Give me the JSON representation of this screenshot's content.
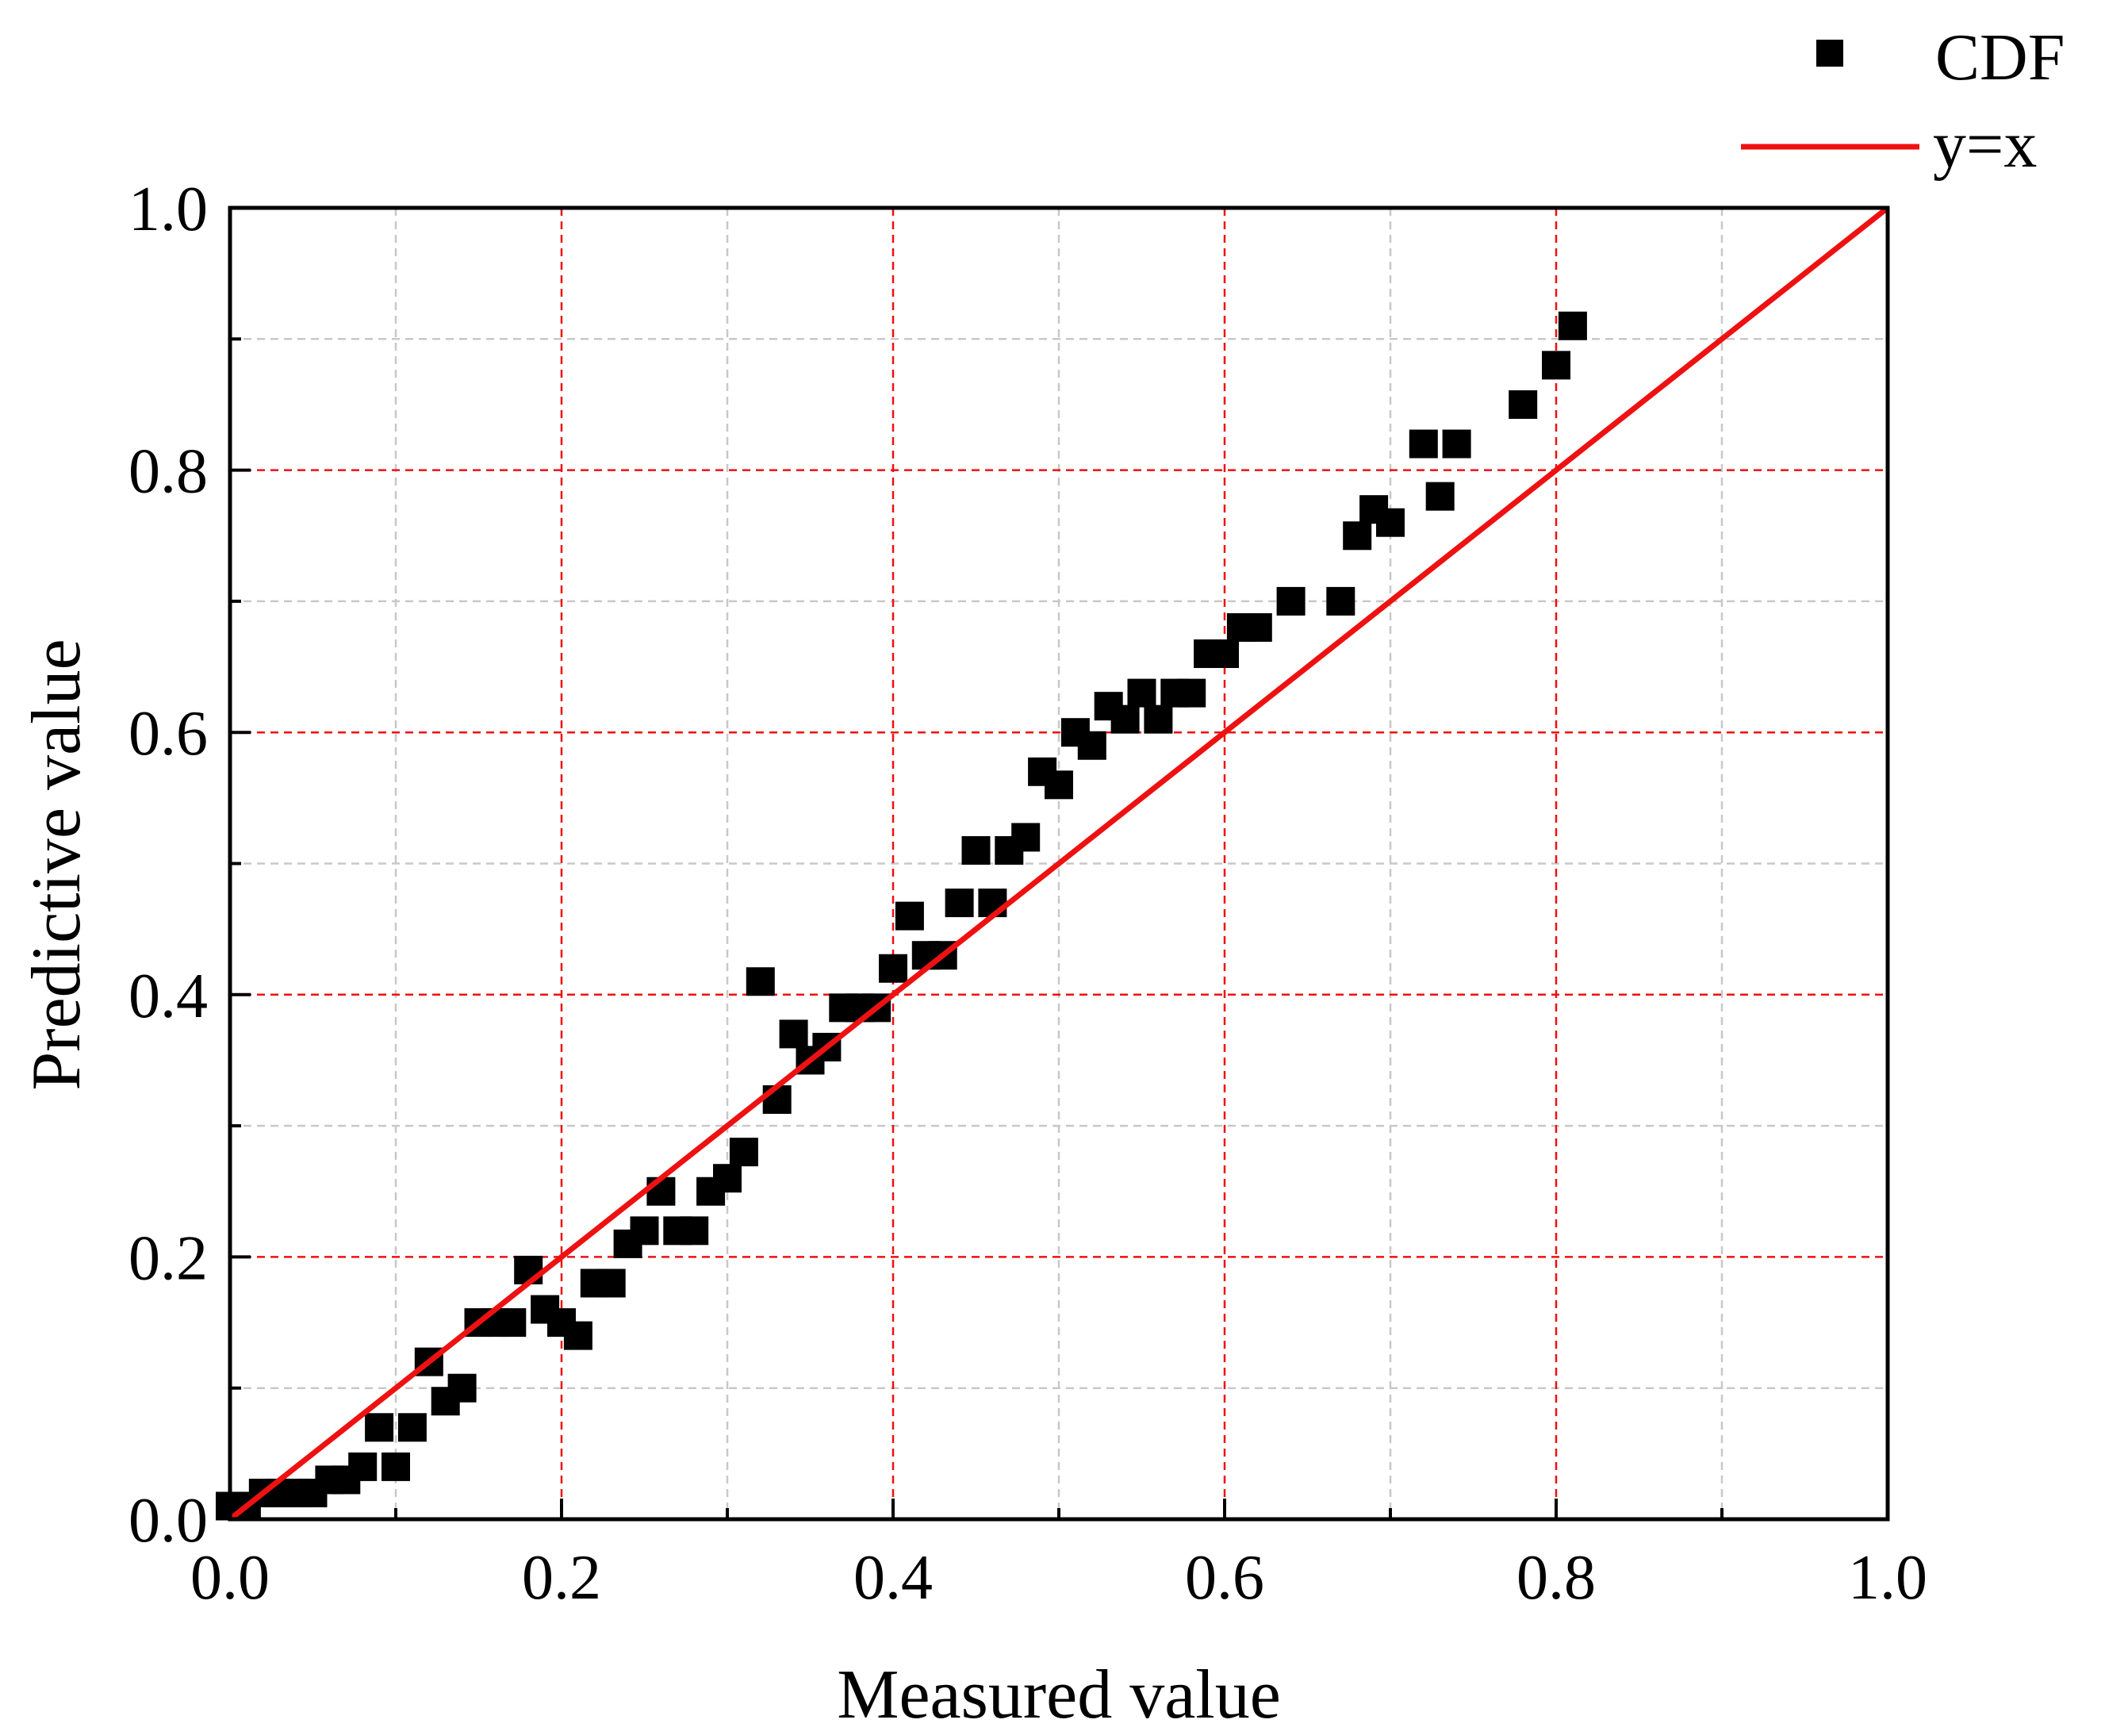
{
  "chart_data": {
    "type": "scatter",
    "title": "",
    "xlabel": "Measured value",
    "ylabel": "Predictive value",
    "xlim": [
      0,
      1
    ],
    "ylim": [
      0,
      1
    ],
    "grid": true,
    "major_ticks": [
      0.0,
      0.2,
      0.4,
      0.6,
      0.8,
      1.0
    ],
    "minor_ticks": [
      0.1,
      0.3,
      0.5,
      0.7,
      0.9
    ],
    "x_tick_labels": [
      "0.0",
      "0.2",
      "0.4",
      "0.6",
      "0.8",
      "1.0"
    ],
    "y_tick_labels": [
      "0.0",
      "0.2",
      "0.4",
      "0.6",
      "0.8",
      "1.0"
    ],
    "legend_position": "top-right",
    "series": [
      {
        "name": "CDF",
        "kind": "scatter",
        "marker": "square",
        "color": "#000000",
        "points": [
          [
            0.0,
            0.01
          ],
          [
            0.01,
            0.01
          ],
          [
            0.02,
            0.02
          ],
          [
            0.03,
            0.02
          ],
          [
            0.04,
            0.02
          ],
          [
            0.05,
            0.02
          ],
          [
            0.06,
            0.03
          ],
          [
            0.07,
            0.03
          ],
          [
            0.08,
            0.04
          ],
          [
            0.09,
            0.07
          ],
          [
            0.1,
            0.04
          ],
          [
            0.11,
            0.07
          ],
          [
            0.12,
            0.12
          ],
          [
            0.13,
            0.09
          ],
          [
            0.14,
            0.1
          ],
          [
            0.15,
            0.15
          ],
          [
            0.16,
            0.15
          ],
          [
            0.17,
            0.15
          ],
          [
            0.18,
            0.19
          ],
          [
            0.19,
            0.16
          ],
          [
            0.2,
            0.15
          ],
          [
            0.21,
            0.14
          ],
          [
            0.22,
            0.18
          ],
          [
            0.23,
            0.18
          ],
          [
            0.24,
            0.21
          ],
          [
            0.25,
            0.22
          ],
          [
            0.26,
            0.25
          ],
          [
            0.27,
            0.22
          ],
          [
            0.28,
            0.22
          ],
          [
            0.29,
            0.25
          ],
          [
            0.3,
            0.26
          ],
          [
            0.31,
            0.28
          ],
          [
            0.32,
            0.41
          ],
          [
            0.33,
            0.32
          ],
          [
            0.34,
            0.37
          ],
          [
            0.35,
            0.35
          ],
          [
            0.36,
            0.36
          ],
          [
            0.37,
            0.39
          ],
          [
            0.38,
            0.39
          ],
          [
            0.39,
            0.39
          ],
          [
            0.4,
            0.42
          ],
          [
            0.41,
            0.46
          ],
          [
            0.42,
            0.43
          ],
          [
            0.43,
            0.43
          ],
          [
            0.44,
            0.47
          ],
          [
            0.45,
            0.51
          ],
          [
            0.46,
            0.47
          ],
          [
            0.47,
            0.51
          ],
          [
            0.48,
            0.52
          ],
          [
            0.49,
            0.57
          ],
          [
            0.5,
            0.56
          ],
          [
            0.51,
            0.6
          ],
          [
            0.52,
            0.59
          ],
          [
            0.53,
            0.62
          ],
          [
            0.54,
            0.61
          ],
          [
            0.55,
            0.63
          ],
          [
            0.56,
            0.61
          ],
          [
            0.57,
            0.63
          ],
          [
            0.58,
            0.63
          ],
          [
            0.59,
            0.66
          ],
          [
            0.6,
            0.66
          ],
          [
            0.61,
            0.68
          ],
          [
            0.62,
            0.68
          ],
          [
            0.64,
            0.7
          ],
          [
            0.67,
            0.7
          ],
          [
            0.68,
            0.75
          ],
          [
            0.69,
            0.77
          ],
          [
            0.7,
            0.76
          ],
          [
            0.72,
            0.82
          ],
          [
            0.73,
            0.78
          ],
          [
            0.74,
            0.82
          ],
          [
            0.78,
            0.85
          ],
          [
            0.8,
            0.88
          ],
          [
            0.81,
            0.91
          ]
        ]
      },
      {
        "name": "y=x",
        "kind": "line",
        "color": "#ee1111",
        "points": [
          [
            0,
            0
          ],
          [
            1,
            1
          ]
        ]
      }
    ]
  }
}
